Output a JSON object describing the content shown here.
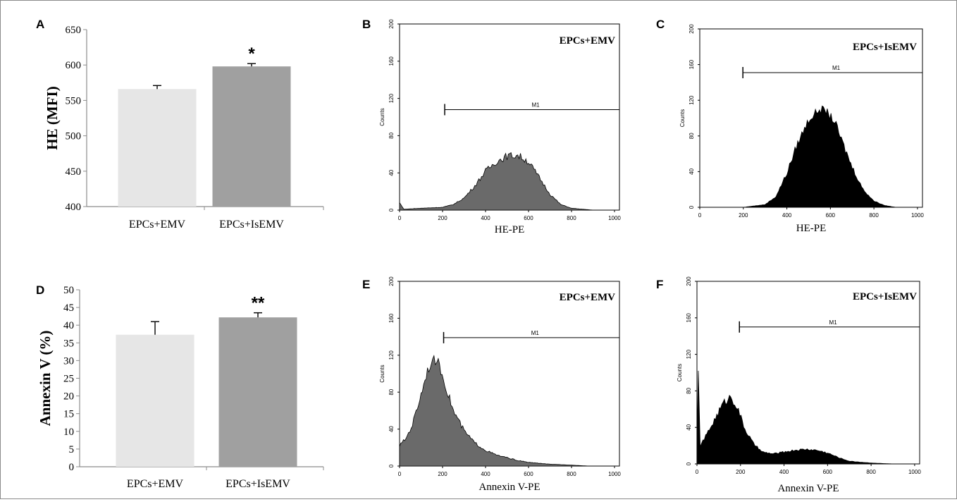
{
  "chart_data": [
    {
      "panel": "A",
      "type": "bar",
      "categories": [
        "EPCs+EMV",
        "EPCs+IsEMV"
      ],
      "values": [
        566,
        598
      ],
      "error_bars": [
        5,
        4
      ],
      "bar_colors": [
        "#e6e6e6",
        "#a0a0a0"
      ],
      "annotations": [
        "",
        "*"
      ],
      "ylabel": "HE (MFI)",
      "xlabel": "",
      "ylim": [
        400,
        650
      ],
      "yticks": [
        "400",
        "450",
        "500",
        "550",
        "600",
        "650"
      ],
      "grid": false
    },
    {
      "panel": "B",
      "type": "area",
      "title": "EPCs+EMV",
      "xlabel": "HE-PE",
      "ylabel": "Counts",
      "xlim": [
        0,
        1023
      ],
      "ylim": [
        0,
        200
      ],
      "xticks": [
        "0",
        "200",
        "400",
        "600",
        "800",
        "1000"
      ],
      "yticks": [
        "0",
        "40",
        "80",
        "120",
        "160",
        "200"
      ],
      "fill": "#6a6a6a",
      "marker": {
        "label": "M1",
        "start": 210,
        "end": 1023,
        "y": 108
      },
      "x": [
        0,
        20,
        100,
        200,
        250,
        300,
        350,
        400,
        450,
        500,
        550,
        600,
        650,
        700,
        750,
        800,
        850,
        900,
        1023
      ],
      "y": [
        8,
        1,
        2,
        3,
        6,
        13,
        26,
        42,
        52,
        58,
        59,
        52,
        35,
        17,
        6,
        2,
        1,
        0,
        0
      ]
    },
    {
      "panel": "C",
      "type": "area",
      "title": "EPCs+IsEMV",
      "xlabel": "HE-PE",
      "ylabel": "Counts",
      "xlim": [
        0,
        1023
      ],
      "ylim": [
        0,
        200
      ],
      "xticks": [
        "0",
        "200",
        "400",
        "600",
        "800",
        "1000"
      ],
      "yticks": [
        "0",
        "40",
        "80",
        "120",
        "160",
        "200"
      ],
      "fill": "#000000",
      "marker": {
        "label": "M1",
        "start": 198,
        "end": 1023,
        "y": 151
      },
      "x": [
        0,
        200,
        300,
        350,
        400,
        450,
        500,
        550,
        580,
        620,
        650,
        700,
        750,
        800,
        850,
        900,
        1023
      ],
      "y": [
        0,
        0,
        3,
        12,
        38,
        72,
        98,
        110,
        108,
        96,
        76,
        45,
        20,
        7,
        2,
        0,
        0
      ]
    },
    {
      "panel": "D",
      "type": "bar",
      "categories": [
        "EPCs+EMV",
        "EPCs+IsEMV"
      ],
      "values": [
        37.3,
        42.2
      ],
      "error_bars": [
        3.7,
        1.3
      ],
      "bar_colors": [
        "#e6e6e6",
        "#a0a0a0"
      ],
      "annotations": [
        "",
        "**"
      ],
      "ylabel": "Annexin V (%)",
      "xlabel": "",
      "ylim": [
        0,
        50
      ],
      "yticks": [
        "0",
        "5",
        "10",
        "15",
        "20",
        "25",
        "30",
        "35",
        "40",
        "45",
        "50"
      ],
      "grid": false
    },
    {
      "panel": "E",
      "type": "area",
      "title": "EPCs+EMV",
      "xlabel": "Annexin V-PE",
      "ylabel": "Counts",
      "xlim": [
        0,
        1023
      ],
      "ylim": [
        0,
        200
      ],
      "xticks": [
        "0",
        "200",
        "400",
        "600",
        "800",
        "1000"
      ],
      "yticks": [
        "0",
        "40",
        "80",
        "120",
        "160",
        "200"
      ],
      "fill": "#6a6a6a",
      "marker": {
        "label": "M1",
        "start": 205,
        "end": 1023,
        "y": 139
      },
      "x": [
        0,
        30,
        60,
        100,
        130,
        160,
        180,
        210,
        250,
        300,
        350,
        400,
        450,
        500,
        550,
        600,
        700,
        800,
        880,
        1023
      ],
      "y": [
        22,
        30,
        45,
        78,
        104,
        115,
        112,
        90,
        60,
        38,
        25,
        17,
        12,
        9,
        6,
        4,
        2,
        1,
        0,
        0
      ]
    },
    {
      "panel": "F",
      "type": "area",
      "title": "EPCs+IsEMV",
      "xlabel": "Annexin V-PE",
      "ylabel": "Counts",
      "xlim": [
        0,
        1023
      ],
      "ylim": [
        0,
        200
      ],
      "xticks": [
        "0",
        "200",
        "400",
        "600",
        "800",
        "1000"
      ],
      "yticks": [
        "0",
        "40",
        "80",
        "120",
        "160",
        "200"
      ],
      "fill": "#000000",
      "marker": {
        "label": "M1",
        "start": 195,
        "end": 1023,
        "y": 150
      },
      "x": [
        0,
        6,
        15,
        40,
        80,
        120,
        155,
        185,
        220,
        260,
        300,
        350,
        400,
        450,
        500,
        550,
        600,
        650,
        700,
        800,
        900,
        1023
      ],
      "y": [
        10,
        100,
        20,
        30,
        48,
        66,
        74,
        62,
        38,
        22,
        13,
        11,
        13,
        15,
        16,
        15,
        12,
        7,
        3,
        1,
        0,
        0
      ]
    }
  ]
}
